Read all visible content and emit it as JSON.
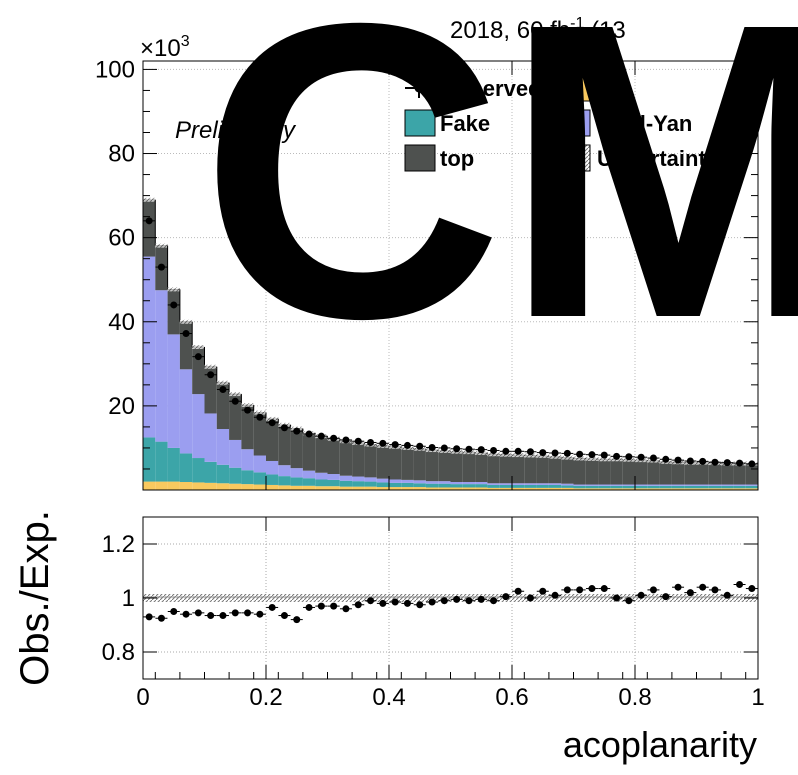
{
  "header": {
    "lumi_text": "2018, 60 fb",
    "lumi_sup": "-1",
    "lumi_energy": " (13",
    "exponent_label": "×10",
    "exponent_power": "3",
    "watermark": "CM",
    "preliminary": "Preliminary"
  },
  "legend": {
    "items": [
      {
        "label": "Observed",
        "kind": "marker"
      },
      {
        "label": "VV",
        "kind": "fill",
        "color": "#f9c95f"
      },
      {
        "label": "Fake",
        "kind": "fill",
        "color": "#3ca5a8"
      },
      {
        "label": "Drell-Yan",
        "kind": "fill",
        "color": "#9b9ef0"
      },
      {
        "label": "top",
        "kind": "fill",
        "color": "#4e514f"
      },
      {
        "label": "Uncertainty",
        "kind": "hatch"
      }
    ]
  },
  "chart_data": [
    {
      "type": "bar",
      "subtype": "stacked-histogram",
      "x_edges_start": 0,
      "x_bin_width": 0.02,
      "n_bins": 50,
      "ylabel_exponent": "×10^3",
      "ylim": [
        0,
        102
      ],
      "xlim": [
        0,
        1
      ],
      "y_ticks": [
        20,
        40,
        60,
        80,
        100
      ],
      "colors": {
        "vv": "#f9c95f",
        "fake": "#3ca5a8",
        "dy": "#9b9ef0",
        "top": "#4e514f",
        "observed": "#000000"
      },
      "series": [
        {
          "name": "VV",
          "values": [
            2,
            2,
            2,
            1.9,
            1.8,
            1.7,
            1.6,
            1.5,
            1.4,
            1.3,
            1.2,
            1.1,
            1,
            1,
            0.9,
            0.9,
            0.8,
            0.8,
            0.8,
            0.7,
            0.7,
            0.7,
            0.7,
            0.6,
            0.6,
            0.6,
            0.6,
            0.6,
            0.5,
            0.5,
            0.5,
            0.5,
            0.5,
            0.5,
            0.5,
            0.4,
            0.4,
            0.4,
            0.4,
            0.4,
            0.4,
            0.4,
            0.4,
            0.4,
            0.4,
            0.4,
            0.4,
            0.4,
            0.4,
            0.4
          ]
        },
        {
          "name": "Fake",
          "values": [
            10.5,
            9.5,
            8,
            6.8,
            5.8,
            5,
            4.4,
            3.8,
            3.3,
            2.9,
            2.5,
            2.2,
            2,
            1.8,
            1.6,
            1.5,
            1.4,
            1.3,
            1.2,
            1.1,
            1,
            1,
            0.9,
            0.9,
            0.9,
            0.8,
            0.8,
            0.8,
            0.7,
            0.7,
            0.7,
            0.7,
            0.7,
            0.7,
            0.6,
            0.6,
            0.6,
            0.6,
            0.6,
            0.6,
            0.6,
            0.6,
            0.6,
            0.6,
            0.6,
            0.6,
            0.6,
            0.6,
            0.6,
            0.6
          ]
        },
        {
          "name": "Drell-Yan",
          "values": [
            43,
            36,
            27,
            20,
            15.2,
            11.5,
            8.5,
            6.6,
            5,
            4,
            3.2,
            2.6,
            2.2,
            1.8,
            1.6,
            1.4,
            1.2,
            1.1,
            1,
            0.9,
            0.8,
            0.7,
            0.7,
            0.6,
            0.6,
            0.5,
            0.5,
            0.5,
            0.4,
            0.4,
            0.4,
            0.4,
            0.4,
            0.4,
            0.4,
            0.3,
            0.3,
            0.3,
            0.3,
            0.3,
            0.3,
            0.3,
            0.3,
            0.3,
            0.3,
            0.3,
            0.3,
            0.3,
            0.3,
            0.3
          ]
        },
        {
          "name": "top",
          "values": [
            13.5,
            10.6,
            10.7,
            11.3,
            11.2,
            11.1,
            11,
            10.9,
            10.5,
            10.2,
            10,
            9.6,
            9.4,
            8.9,
            8.7,
            8.4,
            8.2,
            8,
            7.8,
            7.8,
            7.8,
            7.6,
            7.5,
            7.4,
            7.2,
            7.2,
            7.1,
            6.9,
            6.9,
            6.8,
            6.7,
            6.6,
            6.5,
            6.3,
            6.2,
            6.2,
            6.1,
            6,
            6,
            5.9,
            5.8,
            5.7,
            5.4,
            5.3,
            5.2,
            5.2,
            5.1,
            5,
            5,
            5
          ]
        },
        {
          "name": "Observed",
          "values": [
            64,
            53,
            44,
            37.2,
            31.7,
            27.4,
            23.9,
            21.1,
            19,
            17.3,
            16,
            14.8,
            14,
            13.3,
            12.8,
            12.3,
            11.9,
            11.6,
            11.3,
            11.1,
            10.8,
            10.6,
            10.4,
            10.1,
            10,
            9.8,
            9.7,
            9.6,
            9.4,
            9.2,
            9.2,
            9.1,
            8.9,
            8.8,
            8.7,
            8.5,
            8.4,
            8.3,
            8,
            7.9,
            7.8,
            7.6,
            7.3,
            7.1,
            6.9,
            6.8,
            6.6,
            6.5,
            6.4,
            6.2
          ]
        }
      ]
    },
    {
      "type": "scatter",
      "subtype": "ratio",
      "ylabel": "Obs./Exp.",
      "xlabel": "acoplanarity",
      "xlim": [
        0,
        1
      ],
      "ylim": [
        0.7,
        1.3
      ],
      "y_ticks": [
        0.8,
        1,
        1.2
      ],
      "x_ticks": [
        0,
        0.2,
        0.4,
        0.6,
        0.8,
        1
      ],
      "x_tick_labels": [
        "0",
        "0.2",
        "0.4",
        "0.6",
        "0.8",
        "1"
      ],
      "y_tick_labels": [
        "0.8",
        "1",
        "1.2"
      ],
      "ratio_values": [
        0.93,
        0.925,
        0.95,
        0.94,
        0.945,
        0.935,
        0.935,
        0.945,
        0.945,
        0.94,
        0.965,
        0.935,
        0.92,
        0.965,
        0.97,
        0.97,
        0.96,
        0.975,
        0.99,
        0.98,
        0.985,
        0.98,
        0.975,
        0.985,
        0.99,
        0.995,
        0.99,
        0.995,
        0.99,
        1.005,
        1.025,
        1.0,
        1.025,
        1.01,
        1.03,
        1.03,
        1.035,
        1.035,
        1.0,
        0.99,
        1.01,
        1.03,
        1.005,
        1.04,
        1.02,
        1.04,
        1.03,
        1.01,
        1.05,
        1.035
      ]
    }
  ]
}
